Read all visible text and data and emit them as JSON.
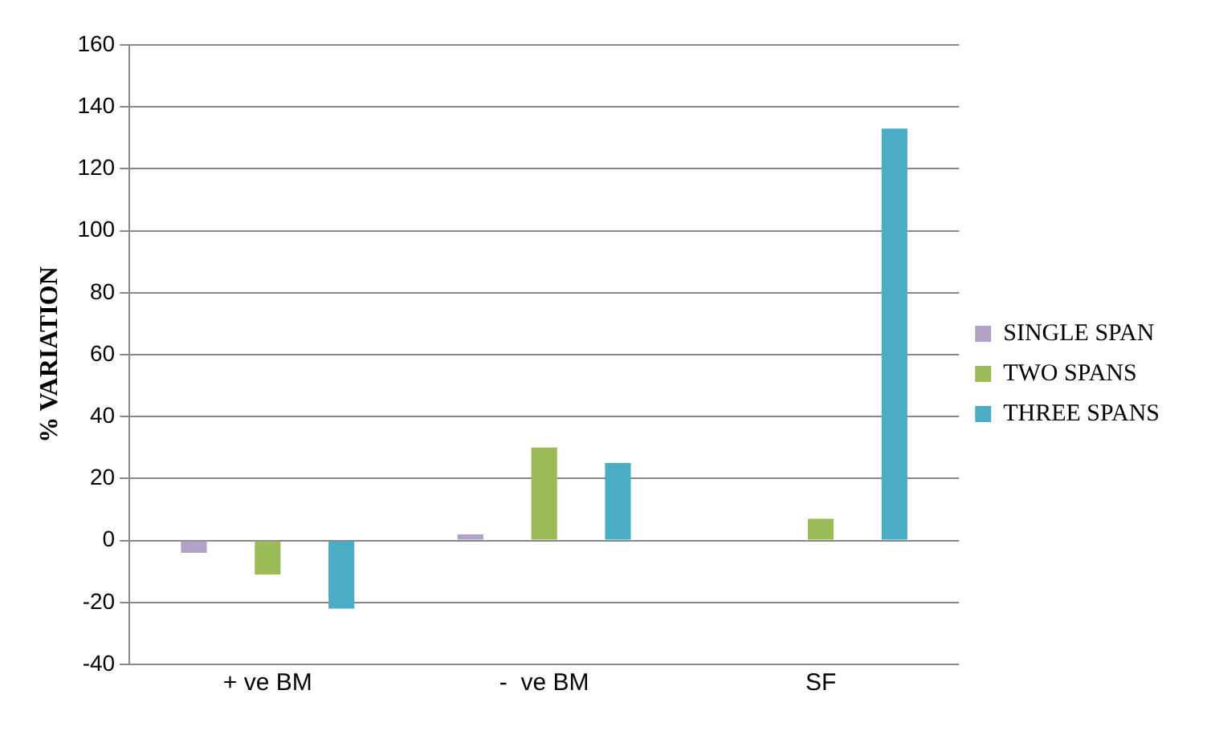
{
  "chart_data": {
    "type": "bar",
    "ylabel": "% VARIATION",
    "categories": [
      "+ ve BM",
      "-  ve BM",
      "SF"
    ],
    "series": [
      {
        "name": "SINGLE SPAN",
        "color": "#b3a2c7",
        "values": [
          -4,
          2,
          0
        ]
      },
      {
        "name": "TWO SPANS",
        "color": "#9bbb59",
        "values": [
          -11,
          30,
          7
        ]
      },
      {
        "name": "THREE SPANS",
        "color": "#4bacc6",
        "values": [
          -22,
          25,
          133
        ]
      }
    ],
    "ylim": [
      -40,
      160
    ],
    "yticks": [
      -40,
      -20,
      0,
      20,
      40,
      60,
      80,
      100,
      120,
      140,
      160
    ],
    "grid": "y",
    "legend": "right"
  }
}
